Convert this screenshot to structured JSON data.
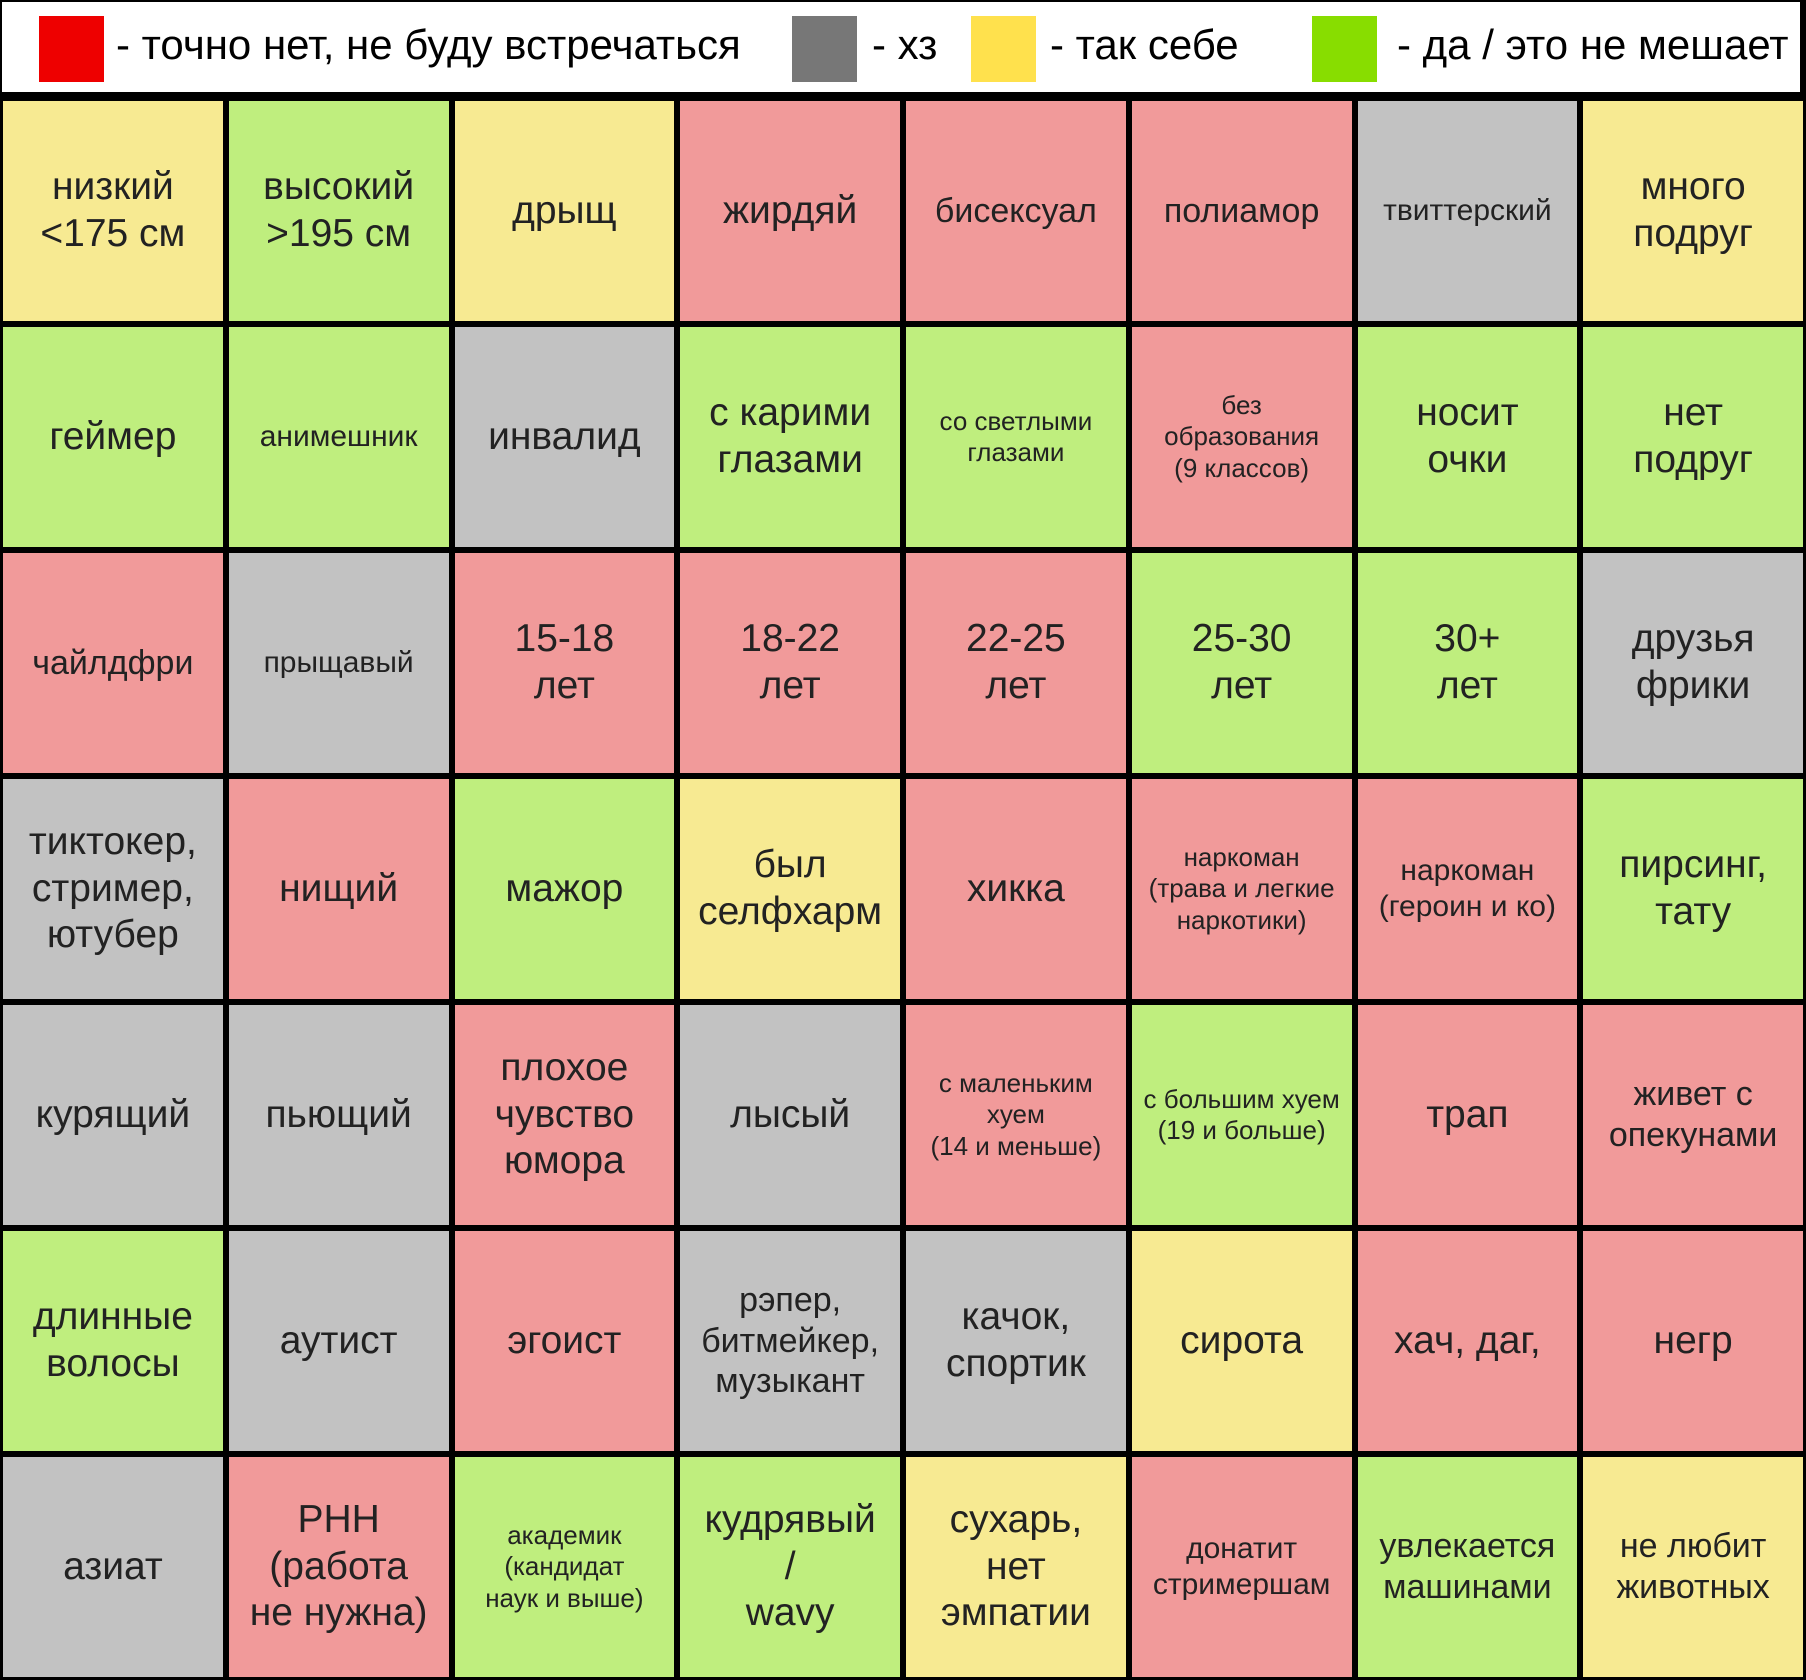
{
  "colors": {
    "red": "#f19a9a",
    "gray": "#c2c2c2",
    "yellow": "#f7ea92",
    "green": "#bfee7e",
    "legend_red": "#ee0000",
    "legend_gray": "#777777",
    "legend_yellow": "#ffe14d",
    "legend_green": "#88dd00"
  },
  "legend": {
    "red": "-  точно нет, не буду встречаться",
    "gray": "-  хз",
    "yellow": "-  так себе",
    "green": "-  да / это не мешает"
  },
  "rows": [
    [
      {
        "label": "низкий\n<175 см",
        "color": "yellow"
      },
      {
        "label": "высокий\n>195 см",
        "color": "green"
      },
      {
        "label": "дрыщ",
        "color": "yellow"
      },
      {
        "label": "жирдяй",
        "color": "red"
      },
      {
        "label": "бисексуал",
        "color": "red"
      },
      {
        "label": "полиамор",
        "color": "red"
      },
      {
        "label": "твиттерский",
        "color": "gray"
      },
      {
        "label": "много\nподруг",
        "color": "yellow"
      }
    ],
    [
      {
        "label": "геймер",
        "color": "green"
      },
      {
        "label": "анимешник",
        "color": "green"
      },
      {
        "label": "инвалид",
        "color": "gray"
      },
      {
        "label": "с карими\nглазами",
        "color": "green"
      },
      {
        "label": "со светлыми\nглазами",
        "color": "green"
      },
      {
        "label": "без\nобразования\n(9 классов)",
        "color": "red"
      },
      {
        "label": "носит\nочки",
        "color": "green"
      },
      {
        "label": "нет\nподруг",
        "color": "green"
      }
    ],
    [
      {
        "label": "чайлдфри",
        "color": "red"
      },
      {
        "label": "прыщавый",
        "color": "gray"
      },
      {
        "label": "15-18\nлет",
        "color": "red"
      },
      {
        "label": "18-22\nлет",
        "color": "red"
      },
      {
        "label": "22-25\nлет",
        "color": "red"
      },
      {
        "label": "25-30\nлет",
        "color": "green"
      },
      {
        "label": "30+\nлет",
        "color": "green"
      },
      {
        "label": "друзья\nфрики",
        "color": "gray"
      }
    ],
    [
      {
        "label": "тиктокер,\nстример,\nютубер",
        "color": "gray"
      },
      {
        "label": "нищий",
        "color": "red"
      },
      {
        "label": "мажор",
        "color": "green"
      },
      {
        "label": "был\nселфхарм",
        "color": "yellow"
      },
      {
        "label": "хикка",
        "color": "red"
      },
      {
        "label": "наркоман\n(трава и легкие\nнаркотики)",
        "color": "red"
      },
      {
        "label": "наркоман\n(героин и ко)",
        "color": "red"
      },
      {
        "label": "пирсинг,\nтату",
        "color": "green"
      }
    ],
    [
      {
        "label": "курящий",
        "color": "gray"
      },
      {
        "label": "пьющий",
        "color": "gray"
      },
      {
        "label": "плохое\nчувство\nюмора",
        "color": "red"
      },
      {
        "label": "лысый",
        "color": "gray"
      },
      {
        "label": "с маленьким\nхуем\n(14 и меньше)",
        "color": "red"
      },
      {
        "label": "с большим хуем\n(19 и больше)",
        "color": "green"
      },
      {
        "label": "трап",
        "color": "red"
      },
      {
        "label": "живет с\nопекунами",
        "color": "red"
      }
    ],
    [
      {
        "label": "длинные\nволосы",
        "color": "green"
      },
      {
        "label": "аутист",
        "color": "gray"
      },
      {
        "label": "эгоист",
        "color": "red"
      },
      {
        "label": "рэпер,\nбитмейкер,\nмузыкант",
        "color": "gray"
      },
      {
        "label": "качок,\nспортик",
        "color": "gray"
      },
      {
        "label": "сирота",
        "color": "yellow"
      },
      {
        "label": "хач, даг,",
        "color": "red"
      },
      {
        "label": "негр",
        "color": "red"
      }
    ],
    [
      {
        "label": "азиат",
        "color": "gray"
      },
      {
        "label": "РНН\n(работа\nне нужна)",
        "color": "red"
      },
      {
        "label": "академик\n(кандидат\nнаук и выше)",
        "color": "green"
      },
      {
        "label": "кудрявый\n/\nwavy",
        "color": "green"
      },
      {
        "label": "сухарь,\nнет\nэмпатии",
        "color": "yellow"
      },
      {
        "label": "донатит\nстримершам",
        "color": "red"
      },
      {
        "label": "увлекается\nмашинами",
        "color": "green"
      },
      {
        "label": "не любит\nживотных",
        "color": "yellow"
      }
    ]
  ]
}
